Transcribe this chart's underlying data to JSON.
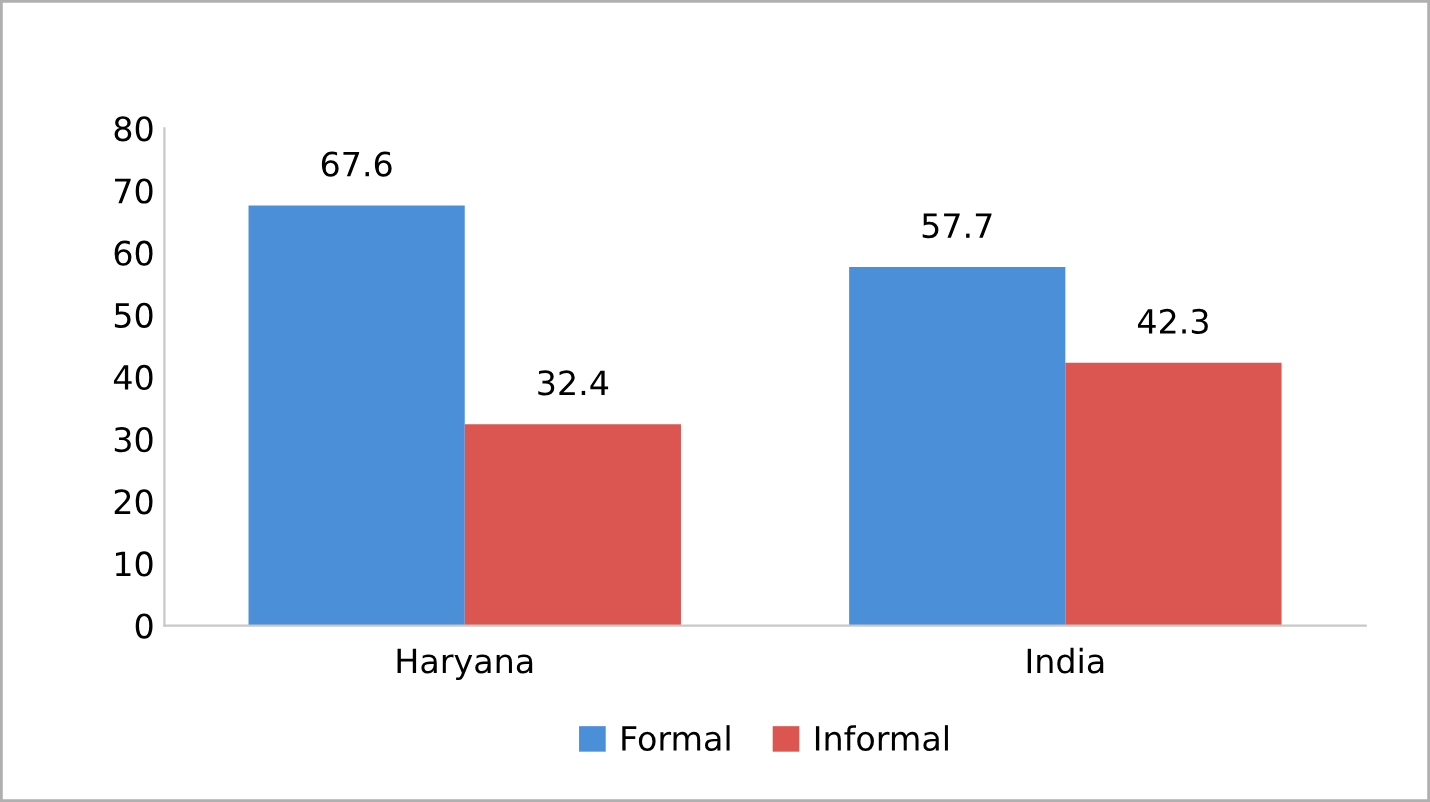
{
  "chart_data": {
    "type": "bar",
    "categories": [
      "Haryana",
      "India"
    ],
    "series": [
      {
        "name": "Formal",
        "color": "#4a8fd8",
        "values": [
          67.6,
          57.7
        ]
      },
      {
        "name": "Informal",
        "color": "#db5650",
        "values": [
          32.4,
          42.3
        ]
      }
    ],
    "ylim": [
      0,
      80
    ],
    "yticks": [
      0,
      10,
      20,
      30,
      40,
      50,
      60,
      70,
      80
    ],
    "grid": false,
    "legend": "bottom",
    "data_labels": true
  }
}
